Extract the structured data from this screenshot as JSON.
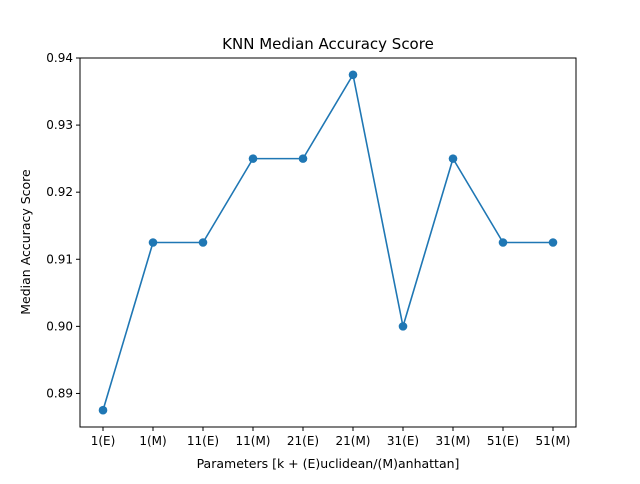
{
  "chart_data": {
    "type": "line",
    "title": "KNN Median Accuracy Score",
    "xlabel": "Parameters [k + (E)uclidean/(M)anhattan]",
    "ylabel": "Median Accuracy Score",
    "categories": [
      "1(E)",
      "1(M)",
      "11(E)",
      "11(M)",
      "21(E)",
      "21(M)",
      "31(E)",
      "31(M)",
      "51(E)",
      "51(M)"
    ],
    "values": [
      0.8875,
      0.9125,
      0.9125,
      0.925,
      0.925,
      0.9375,
      0.9,
      0.925,
      0.9125,
      0.9125
    ],
    "ylim": [
      0.885,
      0.94
    ],
    "yticks": [
      "0.89",
      "0.90",
      "0.91",
      "0.92",
      "0.93",
      "0.94"
    ],
    "marker": "circle",
    "line_color": "#1f77b4",
    "grid": false
  }
}
